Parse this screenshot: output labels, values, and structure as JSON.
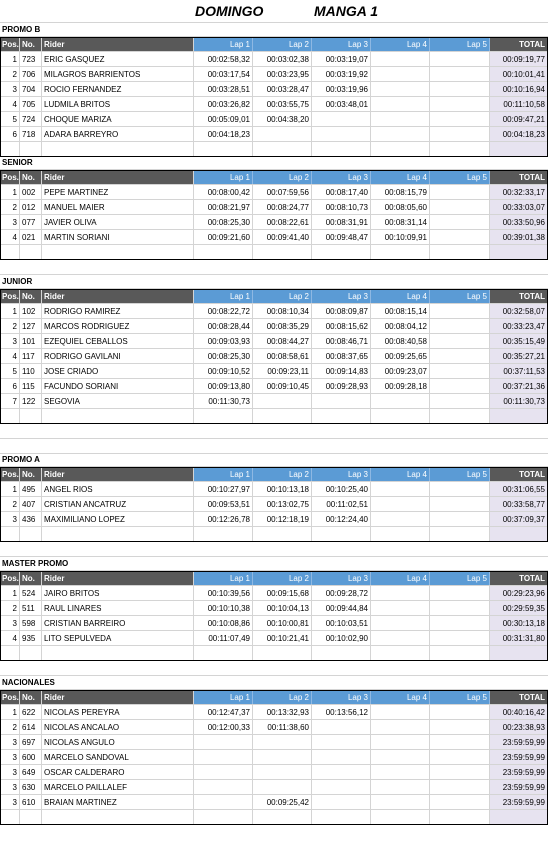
{
  "heading": {
    "day": "DOMINGO",
    "round": "MANGA 1"
  },
  "columns": {
    "pos": "Pos.",
    "no": "No.",
    "rider": "Rider",
    "lap1": "Lap 1",
    "lap2": "Lap 2",
    "lap3": "Lap 3",
    "lap4": "Lap 4",
    "lap5": "Lap 5",
    "total": "TOTAL"
  },
  "categories": [
    {
      "name": "PROMO B",
      "rows": [
        [
          "1",
          "723",
          "ERIC GASQUEZ",
          "00:02:58,32",
          "00:03:02,38",
          "00:03:19,07",
          "",
          "",
          "00:09:19,77"
        ],
        [
          "2",
          "706",
          "MILAGROS BARRIENTOS",
          "00:03:17,54",
          "00:03:23,95",
          "00:03:19,92",
          "",
          "",
          "00:10:01,41"
        ],
        [
          "3",
          "704",
          "ROCIO FERNANDEZ",
          "00:03:28,51",
          "00:03:28,47",
          "00:03:19,96",
          "",
          "",
          "00:10:16,94"
        ],
        [
          "4",
          "705",
          "LUDMILA BRITOS",
          "00:03:26,82",
          "00:03:55,75",
          "00:03:48,01",
          "",
          "",
          "00:11:10,58"
        ],
        [
          "5",
          "724",
          "CHOQUE MARIZA",
          "00:05:09,01",
          "00:04:38,20",
          "",
          "",
          "",
          "00:09:47,21"
        ],
        [
          "6",
          "718",
          "ADARA BARREYRO",
          "00:04:18,23",
          "",
          "",
          "",
          "",
          "00:04:18,23"
        ]
      ]
    },
    {
      "name": "SENIOR",
      "rows": [
        [
          "1",
          "002",
          "PEPE MARTINEZ",
          "00:08:00,42",
          "00:07:59,56",
          "00:08:17,40",
          "00:08:15,79",
          "",
          "00:32:33,17"
        ],
        [
          "2",
          "012",
          "MANUEL MAIER",
          "00:08:21,97",
          "00:08:24,77",
          "00:08:10,73",
          "00:08:05,60",
          "",
          "00:33:03,07"
        ],
        [
          "3",
          "077",
          "JAVIER OLIVA",
          "00:08:25,30",
          "00:08:22,61",
          "00:08:31,91",
          "00:08:31,14",
          "",
          "00:33:50,96"
        ],
        [
          "4",
          "021",
          "MARTIN SORIANI",
          "00:09:21,60",
          "00:09:41,40",
          "00:09:48,47",
          "00:10:09,91",
          "",
          "00:39:01,38"
        ]
      ]
    },
    {
      "name": "JUNIOR",
      "rows": [
        [
          "1",
          "102",
          "RODRIGO RAMIREZ",
          "00:08:22,72",
          "00:08:10,34",
          "00:08:09,87",
          "00:08:15,14",
          "",
          "00:32:58,07"
        ],
        [
          "2",
          "127",
          "MARCOS RODRIGUEZ",
          "00:08:28,44",
          "00:08:35,29",
          "00:08:15,62",
          "00:08:04,12",
          "",
          "00:33:23,47"
        ],
        [
          "3",
          "101",
          "EZEQUIEL CEBALLOS",
          "00:09:03,93",
          "00:08:44,27",
          "00:08:46,71",
          "00:08:40,58",
          "",
          "00:35:15,49"
        ],
        [
          "4",
          "117",
          "RODRIGO GAVILANI",
          "00:08:25,30",
          "00:08:58,61",
          "00:08:37,65",
          "00:09:25,65",
          "",
          "00:35:27,21"
        ],
        [
          "5",
          "110",
          "JOSE CRIADO",
          "00:09:10,52",
          "00:09:23,11",
          "00:09:14,83",
          "00:09:23,07",
          "",
          "00:37:11,53"
        ],
        [
          "6",
          "115",
          "FACUNDO SORIANI",
          "00:09:13,80",
          "00:09:10,45",
          "00:09:28,93",
          "00:09:28,18",
          "",
          "00:37:21,36"
        ],
        [
          "7",
          "122",
          "SEGOVIA",
          "00:11:30,73",
          "",
          "",
          "",
          "",
          "00:11:30,73"
        ]
      ]
    },
    {
      "name": "PROMO A",
      "rows": [
        [
          "1",
          "495",
          "ANGEL RIOS",
          "00:10:27,97",
          "00:10:13,18",
          "00:10:25,40",
          "",
          "",
          "00:31:06,55"
        ],
        [
          "2",
          "407",
          "CRISTIAN ANCATRUZ",
          "00:09:53,51",
          "00:13:02,75",
          "00:11:02,51",
          "",
          "",
          "00:33:58,77"
        ],
        [
          "3",
          "436",
          "MAXIMILIANO LOPEZ",
          "00:12:26,78",
          "00:12:18,19",
          "00:12:24,40",
          "",
          "",
          "00:37:09,37"
        ]
      ]
    },
    {
      "name": "MASTER PROMO",
      "rows": [
        [
          "1",
          "524",
          "JAIRO BRITOS",
          "00:10:39,56",
          "00:09:15,68",
          "00:09:28,72",
          "",
          "",
          "00:29:23,96"
        ],
        [
          "2",
          "511",
          "RAUL LINARES",
          "00:10:10,38",
          "00:10:04,13",
          "00:09:44,84",
          "",
          "",
          "00:29:59,35"
        ],
        [
          "3",
          "598",
          "CRISTIAN BARREIRO",
          "00:10:08,86",
          "00:10:00,81",
          "00:10:03,51",
          "",
          "",
          "00:30:13,18"
        ],
        [
          "4",
          "935",
          "LITO SEPULVEDA",
          "00:11:07,49",
          "00:10:21,41",
          "00:10:02,90",
          "",
          "",
          "00:31:31,80"
        ]
      ]
    },
    {
      "name": "NACIONALES",
      "rows": [
        [
          "1",
          "622",
          "NICOLAS PEREYRA",
          "00:12:47,37",
          "00:13:32,93",
          "00:13:56,12",
          "",
          "",
          "00:40:16,42"
        ],
        [
          "2",
          "614",
          "NICOLAS ANCALAO",
          "00:12:00,33",
          "00:11:38,60",
          "",
          "",
          "",
          "00:23:38,93"
        ],
        [
          "3",
          "697",
          "NICOLAS ANGULO",
          "",
          "",
          "",
          "",
          "",
          "23:59:59,99"
        ],
        [
          "3",
          "600",
          "MARCELO SANDOVAL",
          "",
          "",
          "",
          "",
          "",
          "23:59:59,99"
        ],
        [
          "3",
          "649",
          "OSCAR CALDERARO",
          "",
          "",
          "",
          "",
          "",
          "23:59:59,99"
        ],
        [
          "3",
          "630",
          "MARCELO PAILLALEF",
          "",
          "",
          "",
          "",
          "",
          "23:59:59,99"
        ],
        [
          "3",
          "610",
          "BRAIAN MARTINEZ",
          "",
          "00:09:25,42",
          "",
          "",
          "",
          "23:59:59,99"
        ]
      ]
    }
  ]
}
